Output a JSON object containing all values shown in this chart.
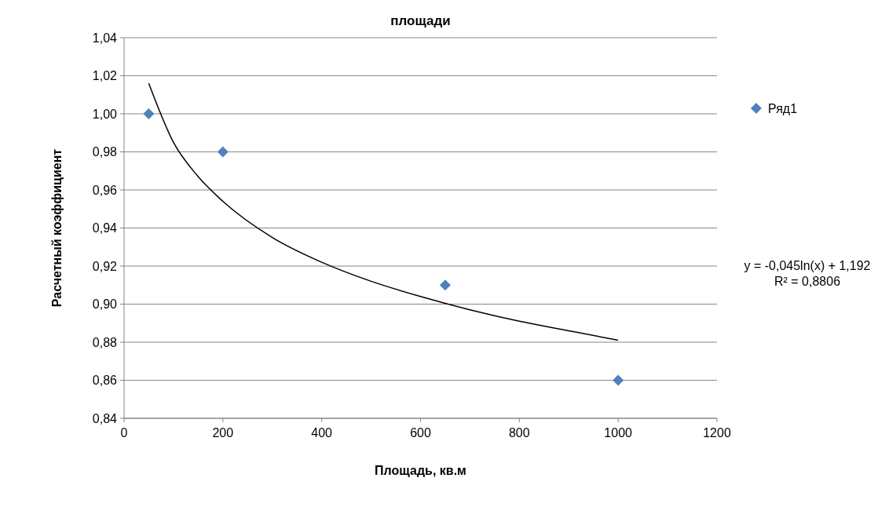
{
  "chart_data": {
    "type": "scatter",
    "title": "площади",
    "xlabel": "Площадь, кв.м",
    "ylabel": "Расчетный коэффициент",
    "series": [
      {
        "name": "Ряд1",
        "color": "#4f81bd",
        "x": [
          50,
          200,
          650,
          1000
        ],
        "values": [
          1.0,
          0.98,
          0.91,
          0.86
        ],
        "marker": "diamond"
      },
      {
        "type": "line",
        "color": "#000000",
        "x": [
          50,
          100,
          150,
          200,
          300,
          400,
          500,
          600,
          700,
          800,
          900,
          1000
        ],
        "values": [
          1.016,
          0.985,
          0.967,
          0.954,
          0.935,
          0.922,
          0.912,
          0.904,
          0.897,
          0.891,
          0.886,
          0.881
        ],
        "marker": "none",
        "line_style": "solid"
      }
    ],
    "annotations": [
      "y = -0,045ln(x) + 1,192",
      "R² = 0,8806"
    ],
    "xlim": [
      0,
      1200
    ],
    "xticks": [
      0,
      200,
      400,
      600,
      800,
      1000,
      1200
    ],
    "ylim": [
      0.84,
      1.04
    ],
    "yticks": [
      {
        "value": 0.84,
        "label": "0,84"
      },
      {
        "value": 0.86,
        "label": "0,86"
      },
      {
        "value": 0.88,
        "label": "0,88"
      },
      {
        "value": 0.9,
        "label": "0,90"
      },
      {
        "value": 0.92,
        "label": "0,92"
      },
      {
        "value": 0.94,
        "label": "0,94"
      },
      {
        "value": 0.96,
        "label": "0,96"
      },
      {
        "value": 0.98,
        "label": "0,98"
      },
      {
        "value": 1.0,
        "label": "1,00"
      },
      {
        "value": 1.02,
        "label": "1,02"
      },
      {
        "value": 1.04,
        "label": "1,04"
      }
    ],
    "grid": "y",
    "legend": "right"
  }
}
